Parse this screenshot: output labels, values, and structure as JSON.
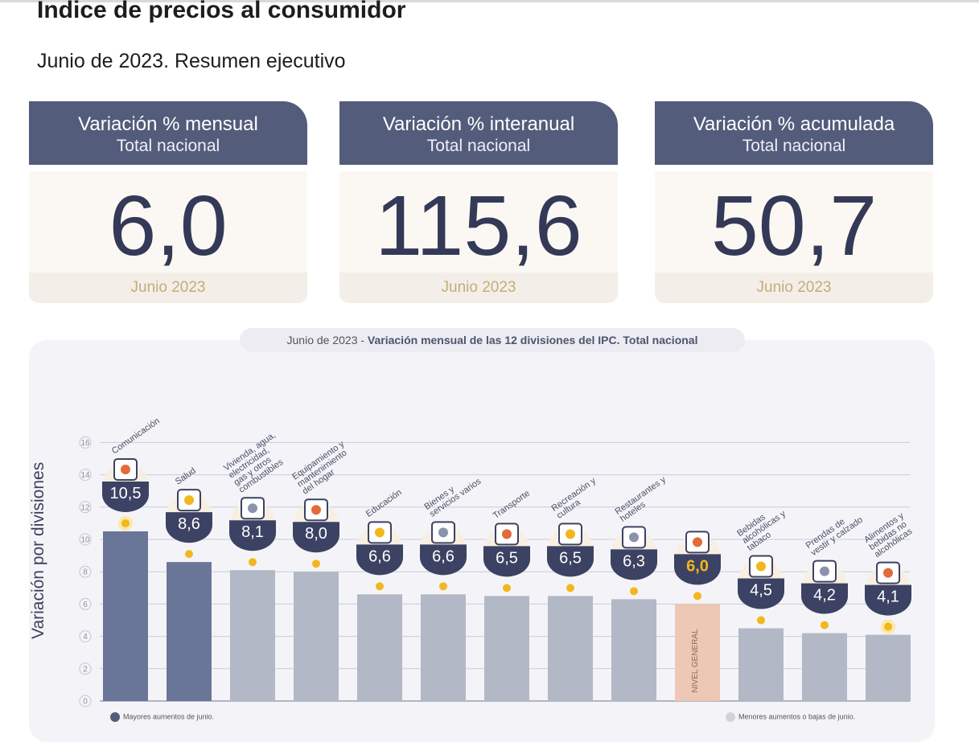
{
  "header": {
    "title": "Indice de precios al consumidor",
    "subtitle": "Junio de 2023. Resumen ejecutivo"
  },
  "cards": [
    {
      "title": "Variación % mensual",
      "subtitle": "Total nacional",
      "value": "6,0",
      "period": "Junio 2023"
    },
    {
      "title": "Variación % interanual",
      "subtitle": "Total nacional",
      "value": "115,6",
      "period": "Junio 2023"
    },
    {
      "title": "Variación % acumulada",
      "subtitle": "Total nacional",
      "value": "50,7",
      "period": "Junio 2023"
    }
  ],
  "chart": {
    "caption_prefix": "Junio de 2023 - ",
    "caption_main": "Variación mensual de las 12 divisiones del IPC. Total nacional",
    "legend_top": "Mayores aumentos de junio.",
    "legend_bottom": "Menores aumentos o bajas de junio."
  },
  "colors": {
    "header": "#545c7b",
    "top_bar": "#6a7698",
    "other_bar": "#b3b8c6",
    "general_bar": "#edc8b4",
    "marker": "#f2b71d",
    "value_text": "#343957",
    "period_text": "#c7aa7c"
  },
  "chart_data": {
    "type": "bar",
    "ylabel": "Variación por divisiones",
    "ylim": [
      0,
      16
    ],
    "yticks": [
      "0",
      "2",
      "4",
      "6",
      "8",
      "10",
      "12",
      "14",
      "16"
    ],
    "categories": [
      "Comunicación",
      "Salud",
      "Vivienda, agua, electricidad, gas y otros combustibles",
      "Equipamiento y mantenimiento del hogar",
      "Educación",
      "Bienes y servicios varios",
      "Transporte",
      "Recreación y cultura",
      "Restaurantes y hoteles",
      "NIVEL GENERAL",
      "Bebidas alcohólicas y tabaco",
      "Prendas de vestir y calzado",
      "Alimentos y bebidas no alcohólicas"
    ],
    "values": [
      10.5,
      8.6,
      8.1,
      8.0,
      6.6,
      6.6,
      6.5,
      6.5,
      6.3,
      6.0,
      4.5,
      4.2,
      4.1
    ],
    "value_labels": [
      "10,5",
      "8,6",
      "8,1",
      "8,0",
      "6,6",
      "6,6",
      "6,5",
      "6,5",
      "6,3",
      "6,0",
      "4,5",
      "4,2",
      "4,1"
    ],
    "groups": [
      "top",
      "top",
      "other",
      "other",
      "other",
      "other",
      "other",
      "other",
      "other",
      "general",
      "other",
      "other",
      "other"
    ],
    "icons": [
      "phone-icon",
      "first-aid-icon",
      "lightbulb-icon",
      "washing-machine-icon",
      "notebook-icon",
      "scissors-icon",
      "bus-icon",
      "umbrella-icon",
      "plate-icon",
      "basket-icon",
      "bottle-icon",
      "shirt-icon",
      "chicken-icon"
    ],
    "grid": true,
    "legend_position": "bottom"
  }
}
